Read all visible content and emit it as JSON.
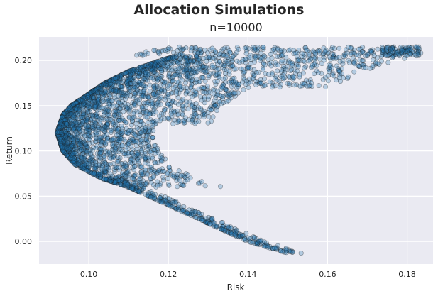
{
  "chart_data": {
    "type": "scatter",
    "suptitle": "Allocation Simulations",
    "title": "n=10000",
    "xlabel": "Risk",
    "ylabel": "Return",
    "xlim": [
      0.0875,
      0.1865
    ],
    "ylim": [
      -0.025,
      0.226
    ],
    "xticks": [
      "0.10",
      "0.12",
      "0.14",
      "0.16",
      "0.18"
    ],
    "xtick_values": [
      0.1,
      0.12,
      0.14,
      0.16,
      0.18
    ],
    "yticks": [
      "0.00",
      "0.05",
      "0.10",
      "0.15",
      "0.20"
    ],
    "ytick_values": [
      0.0,
      0.05,
      0.1,
      0.15,
      0.2
    ],
    "grid": true,
    "background": "#eaeaf2",
    "point_color": "#1f77b4",
    "point_edge": "#1a1a1a",
    "points": {
      "n": 10000,
      "frontier": [
        [
          0.092,
          0.12
        ],
        [
          0.0935,
          0.14
        ],
        [
          0.0955,
          0.15
        ],
        [
          0.099,
          0.16
        ],
        [
          0.104,
          0.175
        ],
        [
          0.11,
          0.188
        ],
        [
          0.118,
          0.2
        ],
        [
          0.126,
          0.21
        ],
        [
          0.134,
          0.215
        ],
        [
          0.15,
          0.215
        ],
        [
          0.16,
          0.213
        ],
        [
          0.17,
          0.211
        ],
        [
          0.182,
          0.213
        ]
      ],
      "lower_branch": [
        [
          0.092,
          0.12
        ],
        [
          0.0935,
          0.1
        ],
        [
          0.0965,
          0.085
        ],
        [
          0.103,
          0.07
        ],
        [
          0.11,
          0.06
        ],
        [
          0.12,
          0.04
        ],
        [
          0.13,
          0.02
        ],
        [
          0.14,
          0.0
        ],
        [
          0.15,
          -0.013
        ]
      ]
    }
  }
}
